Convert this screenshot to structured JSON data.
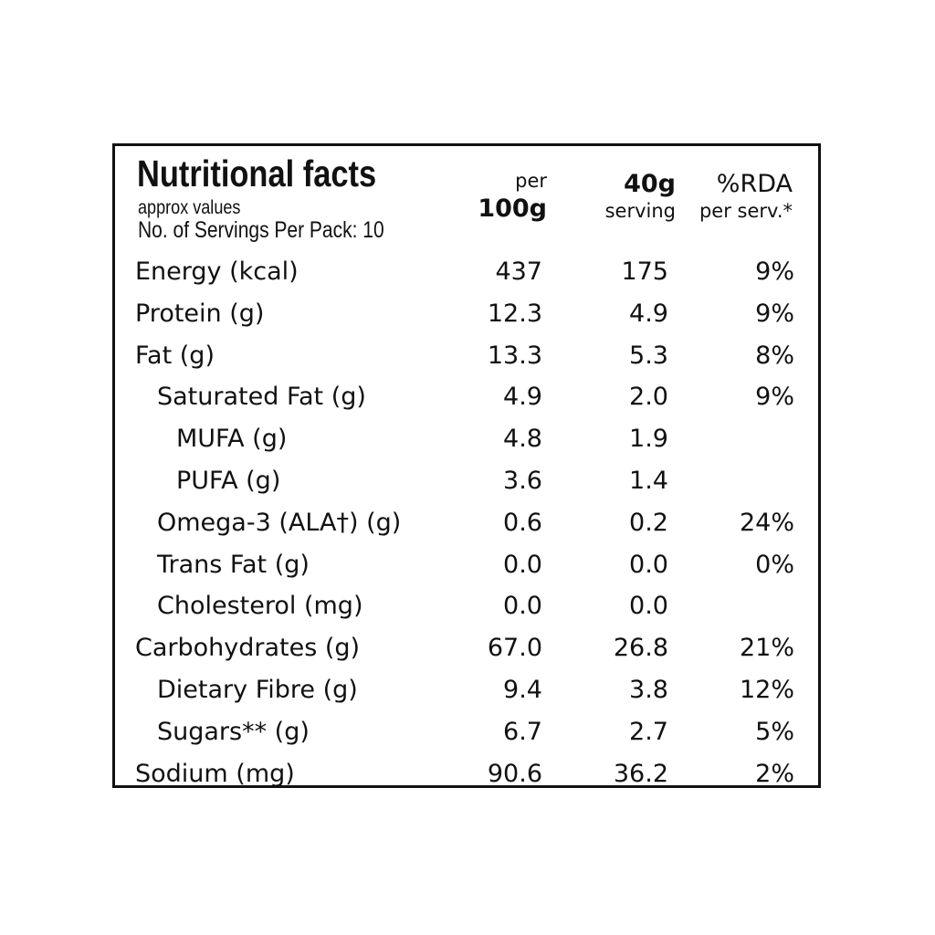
{
  "header": {
    "title": "Nutritional facts",
    "approx": "approx values",
    "servings": "No. of Servings Per Pack: 10",
    "col_per_100g": {
      "top": "per",
      "bottom": "100g"
    },
    "col_serving": {
      "top": "40g",
      "bottom": "serving"
    },
    "col_rda": {
      "top": "%RDA",
      "bottom": "per serv.*"
    }
  },
  "rows": [
    {
      "label": "Energy (kcal)",
      "per100g": "437",
      "serving": "175",
      "rda": "9%"
    },
    {
      "label": "Protein (g)",
      "per100g": "12.3",
      "serving": "4.9",
      "rda": "9%"
    },
    {
      "label": "Fat (g)",
      "per100g": "13.3",
      "serving": "5.3",
      "rda": "8%"
    },
    {
      "label": "Saturated Fat (g)",
      "per100g": "4.9",
      "serving": "2.0",
      "rda": "9%"
    },
    {
      "label": "MUFA (g)",
      "per100g": "4.8",
      "serving": "1.9",
      "rda": ""
    },
    {
      "label": "PUFA (g)",
      "per100g": "3.6",
      "serving": "1.4",
      "rda": ""
    },
    {
      "label": "Omega-3 (ALA†) (g)",
      "per100g": "0.6",
      "serving": "0.2",
      "rda": "24%"
    },
    {
      "label": "Trans Fat (g)",
      "per100g": "0.0",
      "serving": "0.0",
      "rda": "0%"
    },
    {
      "label": "Cholesterol (mg)",
      "per100g": "0.0",
      "serving": "0.0",
      "rda": ""
    },
    {
      "label": "Carbohydrates (g)",
      "per100g": "67.0",
      "serving": "26.8",
      "rda": "21%"
    },
    {
      "label": "Dietary Fibre (g)",
      "per100g": "9.4",
      "serving": "3.8",
      "rda": "12%"
    },
    {
      "label": "Sugars** (g)",
      "per100g": "6.7",
      "serving": "2.7",
      "rda": "5%"
    },
    {
      "label": "Sodium (mg)",
      "per100g": "90.6",
      "serving": "36.2",
      "rda": "2%"
    }
  ]
}
